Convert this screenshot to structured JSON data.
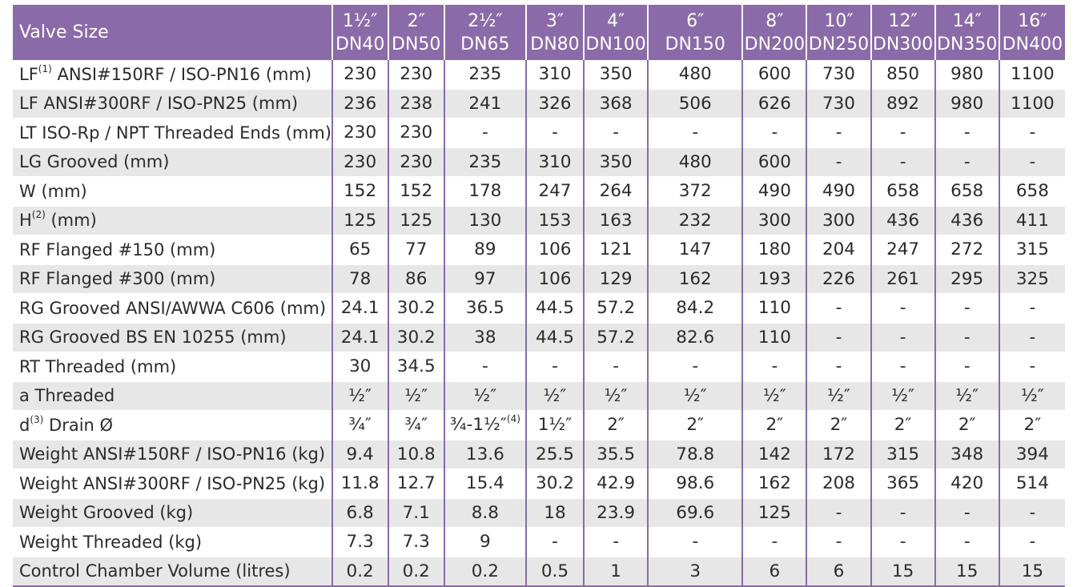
{
  "header": {
    "row_label": "Valve Size",
    "sizes": [
      {
        "inch": "1½″",
        "dn": "DN40"
      },
      {
        "inch": "2″",
        "dn": "DN50"
      },
      {
        "inch": "2½″",
        "dn": "DN65"
      },
      {
        "inch": "3″",
        "dn": "DN80"
      },
      {
        "inch": "4″",
        "dn": "DN100"
      },
      {
        "inch": "6″",
        "dn": "DN150"
      },
      {
        "inch": "8″",
        "dn": "DN200"
      },
      {
        "inch": "10″",
        "dn": "DN250"
      },
      {
        "inch": "12″",
        "dn": "DN300"
      },
      {
        "inch": "14″",
        "dn": "DN350"
      },
      {
        "inch": "16″",
        "dn": "DN400"
      }
    ]
  },
  "rows": [
    {
      "pre": "LF",
      "sup": "(1)",
      "post": " ANSI#150RF / ISO-PN16 (mm)",
      "cells": [
        {
          "v": "230"
        },
        {
          "v": "230"
        },
        {
          "v": "235"
        },
        {
          "v": "310"
        },
        {
          "v": "350"
        },
        {
          "v": "480"
        },
        {
          "v": "600"
        },
        {
          "v": "730"
        },
        {
          "v": "850"
        },
        {
          "v": "980"
        },
        {
          "v": "1100"
        }
      ]
    },
    {
      "pre": "LF ANSI#300RF  / ISO-PN25 (mm)",
      "sup": "",
      "post": "",
      "cells": [
        {
          "v": "236"
        },
        {
          "v": "238"
        },
        {
          "v": "241"
        },
        {
          "v": "326"
        },
        {
          "v": "368"
        },
        {
          "v": "506"
        },
        {
          "v": "626"
        },
        {
          "v": "730"
        },
        {
          "v": "892"
        },
        {
          "v": "980"
        },
        {
          "v": "1100"
        }
      ]
    },
    {
      "pre": "LT ISO-Rp / NPT Threaded Ends (mm)",
      "sup": "",
      "post": "",
      "cells": [
        {
          "v": "230"
        },
        {
          "v": "230"
        },
        {
          "v": "-"
        },
        {
          "v": "-"
        },
        {
          "v": "-"
        },
        {
          "v": "-"
        },
        {
          "v": "-"
        },
        {
          "v": "-"
        },
        {
          "v": "-"
        },
        {
          "v": "-"
        },
        {
          "v": "-"
        }
      ]
    },
    {
      "pre": "LG Grooved (mm)",
      "sup": "",
      "post": "",
      "cells": [
        {
          "v": "230"
        },
        {
          "v": "230"
        },
        {
          "v": "235"
        },
        {
          "v": "310"
        },
        {
          "v": "350"
        },
        {
          "v": "480"
        },
        {
          "v": "600"
        },
        {
          "v": "-"
        },
        {
          "v": "-"
        },
        {
          "v": "-"
        },
        {
          "v": "-"
        }
      ]
    },
    {
      "pre": "W (mm)",
      "sup": "",
      "post": "",
      "cells": [
        {
          "v": "152"
        },
        {
          "v": "152"
        },
        {
          "v": "178"
        },
        {
          "v": "247"
        },
        {
          "v": "264"
        },
        {
          "v": "372"
        },
        {
          "v": "490"
        },
        {
          "v": "490"
        },
        {
          "v": "658"
        },
        {
          "v": "658"
        },
        {
          "v": "658"
        }
      ]
    },
    {
      "pre": "H",
      "sup": "(2)",
      "post": " (mm)",
      "cells": [
        {
          "v": "125"
        },
        {
          "v": "125"
        },
        {
          "v": "130"
        },
        {
          "v": "153"
        },
        {
          "v": "163"
        },
        {
          "v": "232"
        },
        {
          "v": "300"
        },
        {
          "v": "300"
        },
        {
          "v": "436"
        },
        {
          "v": "436"
        },
        {
          "v": "411"
        }
      ]
    },
    {
      "pre": "RF Flanged #150 (mm)",
      "sup": "",
      "post": "",
      "cells": [
        {
          "v": "65"
        },
        {
          "v": "77"
        },
        {
          "v": "89"
        },
        {
          "v": "106"
        },
        {
          "v": "121"
        },
        {
          "v": "147"
        },
        {
          "v": "180"
        },
        {
          "v": "204"
        },
        {
          "v": "247"
        },
        {
          "v": "272"
        },
        {
          "v": "315"
        }
      ]
    },
    {
      "pre": "RF Flanged #300 (mm)",
      "sup": "",
      "post": "",
      "cells": [
        {
          "v": "78"
        },
        {
          "v": "86"
        },
        {
          "v": "97"
        },
        {
          "v": "106"
        },
        {
          "v": "129"
        },
        {
          "v": "162"
        },
        {
          "v": "193"
        },
        {
          "v": "226"
        },
        {
          "v": "261"
        },
        {
          "v": "295"
        },
        {
          "v": "325"
        }
      ]
    },
    {
      "pre": "RG Grooved ANSI/AWWA C606 (mm)",
      "sup": "",
      "post": "",
      "cells": [
        {
          "v": "24.1"
        },
        {
          "v": "30.2"
        },
        {
          "v": "36.5"
        },
        {
          "v": "44.5"
        },
        {
          "v": "57.2"
        },
        {
          "v": "84.2"
        },
        {
          "v": "110"
        },
        {
          "v": "-"
        },
        {
          "v": "-"
        },
        {
          "v": "-"
        },
        {
          "v": "-"
        }
      ]
    },
    {
      "pre": "RG Grooved BS EN 10255 (mm)",
      "sup": "",
      "post": "",
      "cells": [
        {
          "v": "24.1"
        },
        {
          "v": "30.2"
        },
        {
          "v": "38"
        },
        {
          "v": "44.5"
        },
        {
          "v": "57.2"
        },
        {
          "v": "82.6"
        },
        {
          "v": "110"
        },
        {
          "v": "-"
        },
        {
          "v": "-"
        },
        {
          "v": "-"
        },
        {
          "v": "-"
        }
      ]
    },
    {
      "pre": "RT Threaded (mm)",
      "sup": "",
      "post": "",
      "cells": [
        {
          "v": "30"
        },
        {
          "v": "34.5"
        },
        {
          "v": "-"
        },
        {
          "v": "-"
        },
        {
          "v": "-"
        },
        {
          "v": "-"
        },
        {
          "v": "-"
        },
        {
          "v": "-"
        },
        {
          "v": "-"
        },
        {
          "v": "-"
        },
        {
          "v": "-"
        }
      ]
    },
    {
      "pre": "a Threaded",
      "sup": "",
      "post": "",
      "cells": [
        {
          "v": "½″"
        },
        {
          "v": "½″"
        },
        {
          "v": "½″"
        },
        {
          "v": "½″"
        },
        {
          "v": "½″"
        },
        {
          "v": "½″"
        },
        {
          "v": "½″"
        },
        {
          "v": "½″"
        },
        {
          "v": "½″"
        },
        {
          "v": "½″"
        },
        {
          "v": "½″"
        }
      ]
    },
    {
      "pre": "d",
      "sup": "(3)",
      "post": " Drain Ø",
      "cells": [
        {
          "v": "¾″"
        },
        {
          "v": "¾″"
        },
        {
          "v": "¾-1½″",
          "s": "(4)"
        },
        {
          "v": "1½″"
        },
        {
          "v": "2″"
        },
        {
          "v": "2″"
        },
        {
          "v": "2″"
        },
        {
          "v": "2″"
        },
        {
          "v": "2″"
        },
        {
          "v": "2″"
        },
        {
          "v": "2″"
        }
      ]
    },
    {
      "pre": "Weight ANSI#150RF / ISO-PN16 (kg)",
      "sup": "",
      "post": "",
      "cells": [
        {
          "v": "9.4"
        },
        {
          "v": "10.8"
        },
        {
          "v": "13.6"
        },
        {
          "v": "25.5"
        },
        {
          "v": "35.5"
        },
        {
          "v": "78.8"
        },
        {
          "v": "142"
        },
        {
          "v": "172"
        },
        {
          "v": "315"
        },
        {
          "v": "348"
        },
        {
          "v": "394"
        }
      ]
    },
    {
      "pre": "Weight ANSI#300RF / ISO-PN25 (kg)",
      "sup": "",
      "post": "",
      "cells": [
        {
          "v": "11.8"
        },
        {
          "v": "12.7"
        },
        {
          "v": "15.4"
        },
        {
          "v": "30.2"
        },
        {
          "v": "42.9"
        },
        {
          "v": "98.6"
        },
        {
          "v": "162"
        },
        {
          "v": "208"
        },
        {
          "v": "365"
        },
        {
          "v": "420"
        },
        {
          "v": "514"
        }
      ]
    },
    {
      "pre": "Weight Grooved (kg)",
      "sup": "",
      "post": "",
      "cells": [
        {
          "v": "6.8"
        },
        {
          "v": "7.1"
        },
        {
          "v": "8.8"
        },
        {
          "v": "18"
        },
        {
          "v": "23.9"
        },
        {
          "v": "69.6"
        },
        {
          "v": "125"
        },
        {
          "v": "-"
        },
        {
          "v": "-"
        },
        {
          "v": "-"
        },
        {
          "v": "-"
        }
      ]
    },
    {
      "pre": "Weight Threaded (kg)",
      "sup": "",
      "post": "",
      "cells": [
        {
          "v": "7.3"
        },
        {
          "v": "7.3"
        },
        {
          "v": "9"
        },
        {
          "v": "-"
        },
        {
          "v": "-"
        },
        {
          "v": "-"
        },
        {
          "v": "-"
        },
        {
          "v": "-"
        },
        {
          "v": "-"
        },
        {
          "v": "-"
        },
        {
          "v": "-"
        }
      ]
    },
    {
      "pre": "Control Chamber Volume (litres)",
      "sup": "",
      "post": "",
      "cells": [
        {
          "v": "0.2"
        },
        {
          "v": "0.2"
        },
        {
          "v": "0.2"
        },
        {
          "v": "0.5"
        },
        {
          "v": "1"
        },
        {
          "v": "3"
        },
        {
          "v": "6"
        },
        {
          "v": "6"
        },
        {
          "v": "15"
        },
        {
          "v": "15"
        },
        {
          "v": "15"
        }
      ]
    }
  ]
}
